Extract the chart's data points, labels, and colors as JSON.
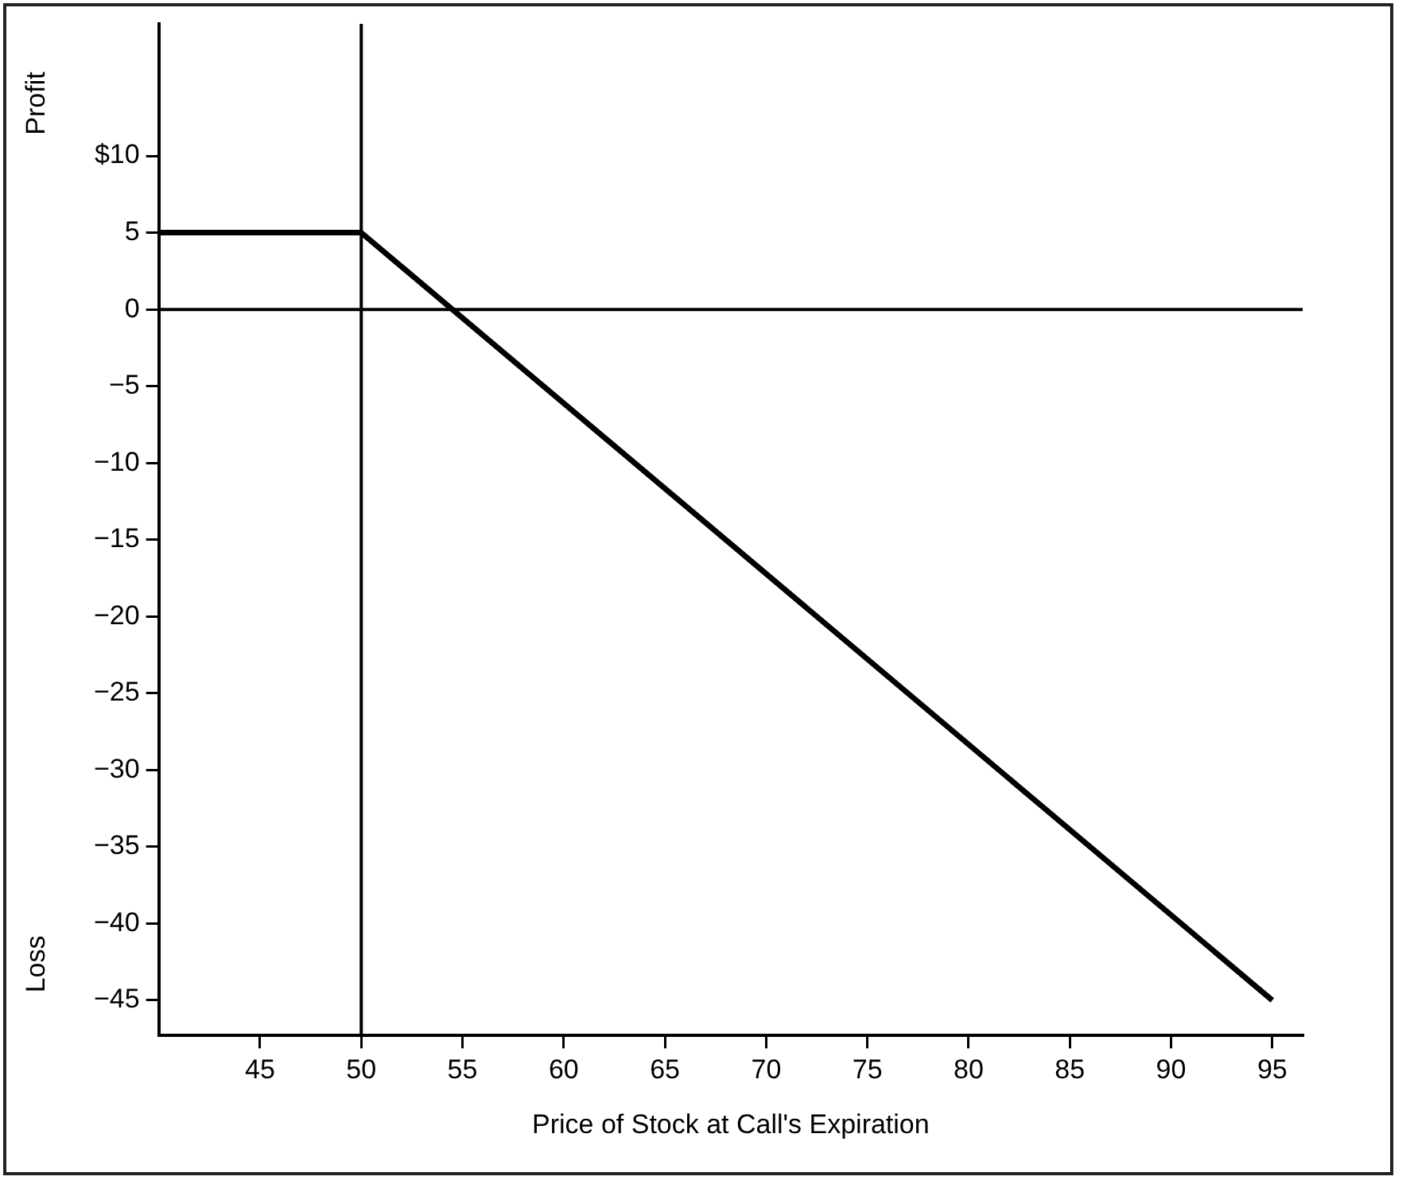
{
  "chart_data": {
    "type": "line",
    "xlabel": "Price of Stock at Call's Expiration",
    "annotations": [
      "Profit",
      "Loss"
    ],
    "x": [
      40,
      50,
      95
    ],
    "series": [
      {
        "color": "#000000",
        "values": [
          5,
          5,
          -45
        ]
      }
    ],
    "xlim": [
      40,
      96.5
    ],
    "xticks": [
      45,
      50,
      55,
      60,
      65,
      70,
      75,
      80,
      85,
      90,
      95
    ],
    "ylim": [
      -47.3,
      18.6
    ],
    "yticks": [
      {
        "value": 10,
        "label": "$10"
      },
      5,
      0,
      -5,
      -10,
      -15,
      -20,
      -25,
      -30,
      -35,
      -40,
      -45
    ],
    "ref_lines": [
      {
        "axis": "y",
        "value": 0,
        "color": "#000000"
      },
      {
        "axis": "x",
        "value": 50,
        "color": "#000000"
      }
    ],
    "grid": false,
    "legend": false,
    "marker": "none",
    "line_style": "solid"
  }
}
